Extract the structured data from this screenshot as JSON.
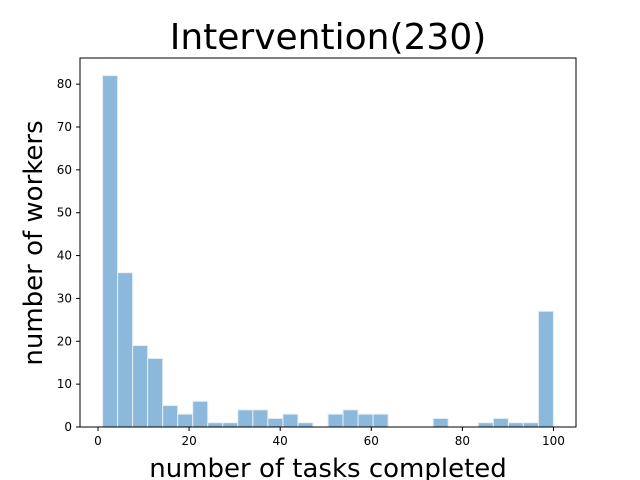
{
  "chart_data": {
    "type": "bar",
    "title": "Intervention(230)",
    "xlabel": "number of tasks completed",
    "ylabel": "number of workers",
    "xlim": [
      -3.95,
      104.95
    ],
    "ylim": [
      0,
      86.1
    ],
    "xticks": [
      0,
      20,
      40,
      60,
      80,
      100
    ],
    "yticks": [
      0,
      10,
      20,
      30,
      40,
      50,
      60,
      70,
      80
    ],
    "bin_edges": [
      1,
      4.3,
      7.6,
      10.9,
      14.2,
      17.5,
      20.8,
      24.1,
      27.4,
      30.7,
      34,
      37.3,
      40.6,
      43.9,
      47.2,
      50.5,
      53.8,
      57.1,
      60.4,
      63.7,
      67,
      70.3,
      73.6,
      76.9,
      80.2,
      83.5,
      86.8,
      90.1,
      93.4,
      96.7,
      100
    ],
    "values": [
      82,
      36,
      19,
      16,
      5,
      3,
      6,
      1,
      1,
      4,
      4,
      2,
      3,
      1,
      0,
      3,
      4,
      3,
      3,
      0,
      0,
      0,
      2,
      0,
      0,
      1,
      2,
      1,
      1,
      27
    ],
    "bar_color": "#8cb9db",
    "bar_edge_color": "#e6eef6",
    "grid": false
  }
}
